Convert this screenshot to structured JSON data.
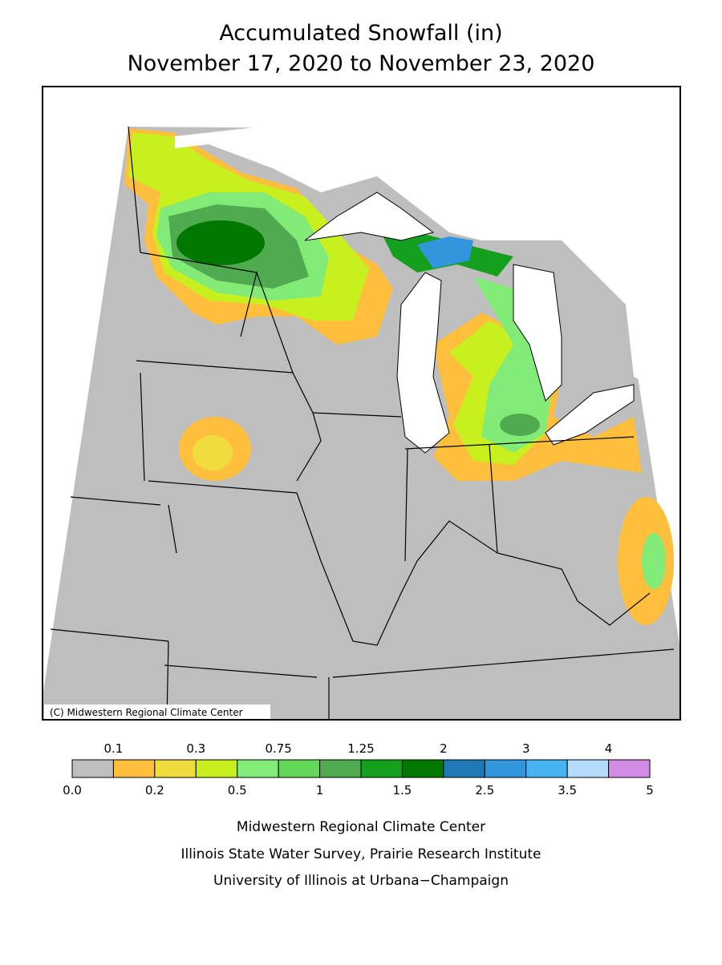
{
  "header": {
    "title": "Accumulated Snowfall (in)",
    "subtitle": "November 17, 2020 to November 23, 2020"
  },
  "map": {
    "credit": "(C) Midwestern Regional Climate Center"
  },
  "legend": {
    "bounds": [
      {
        "value": 0,
        "label": "0.0"
      },
      0.1,
      0.2,
      0.3,
      0.5,
      0.75,
      1,
      1.25,
      1.5,
      2,
      2.5,
      3,
      3.5,
      4,
      5
    ],
    "colors": [
      "#bebebe",
      "#ffbe3c",
      "#f0dc3c",
      "#c8f01e",
      "#82eb78",
      "#64d75a",
      "#50aa50",
      "#14a01e",
      "#007800",
      "#1e78b4",
      "#3296dc",
      "#46b4f0",
      "#b4dcfa",
      "#d28ce6"
    ]
  },
  "footer": {
    "lines": [
      "Midwestern Regional Climate Center",
      "Illinois State Water Survey, Prairie Research Institute",
      "University of Illinois at Urbana−Champaign"
    ]
  }
}
